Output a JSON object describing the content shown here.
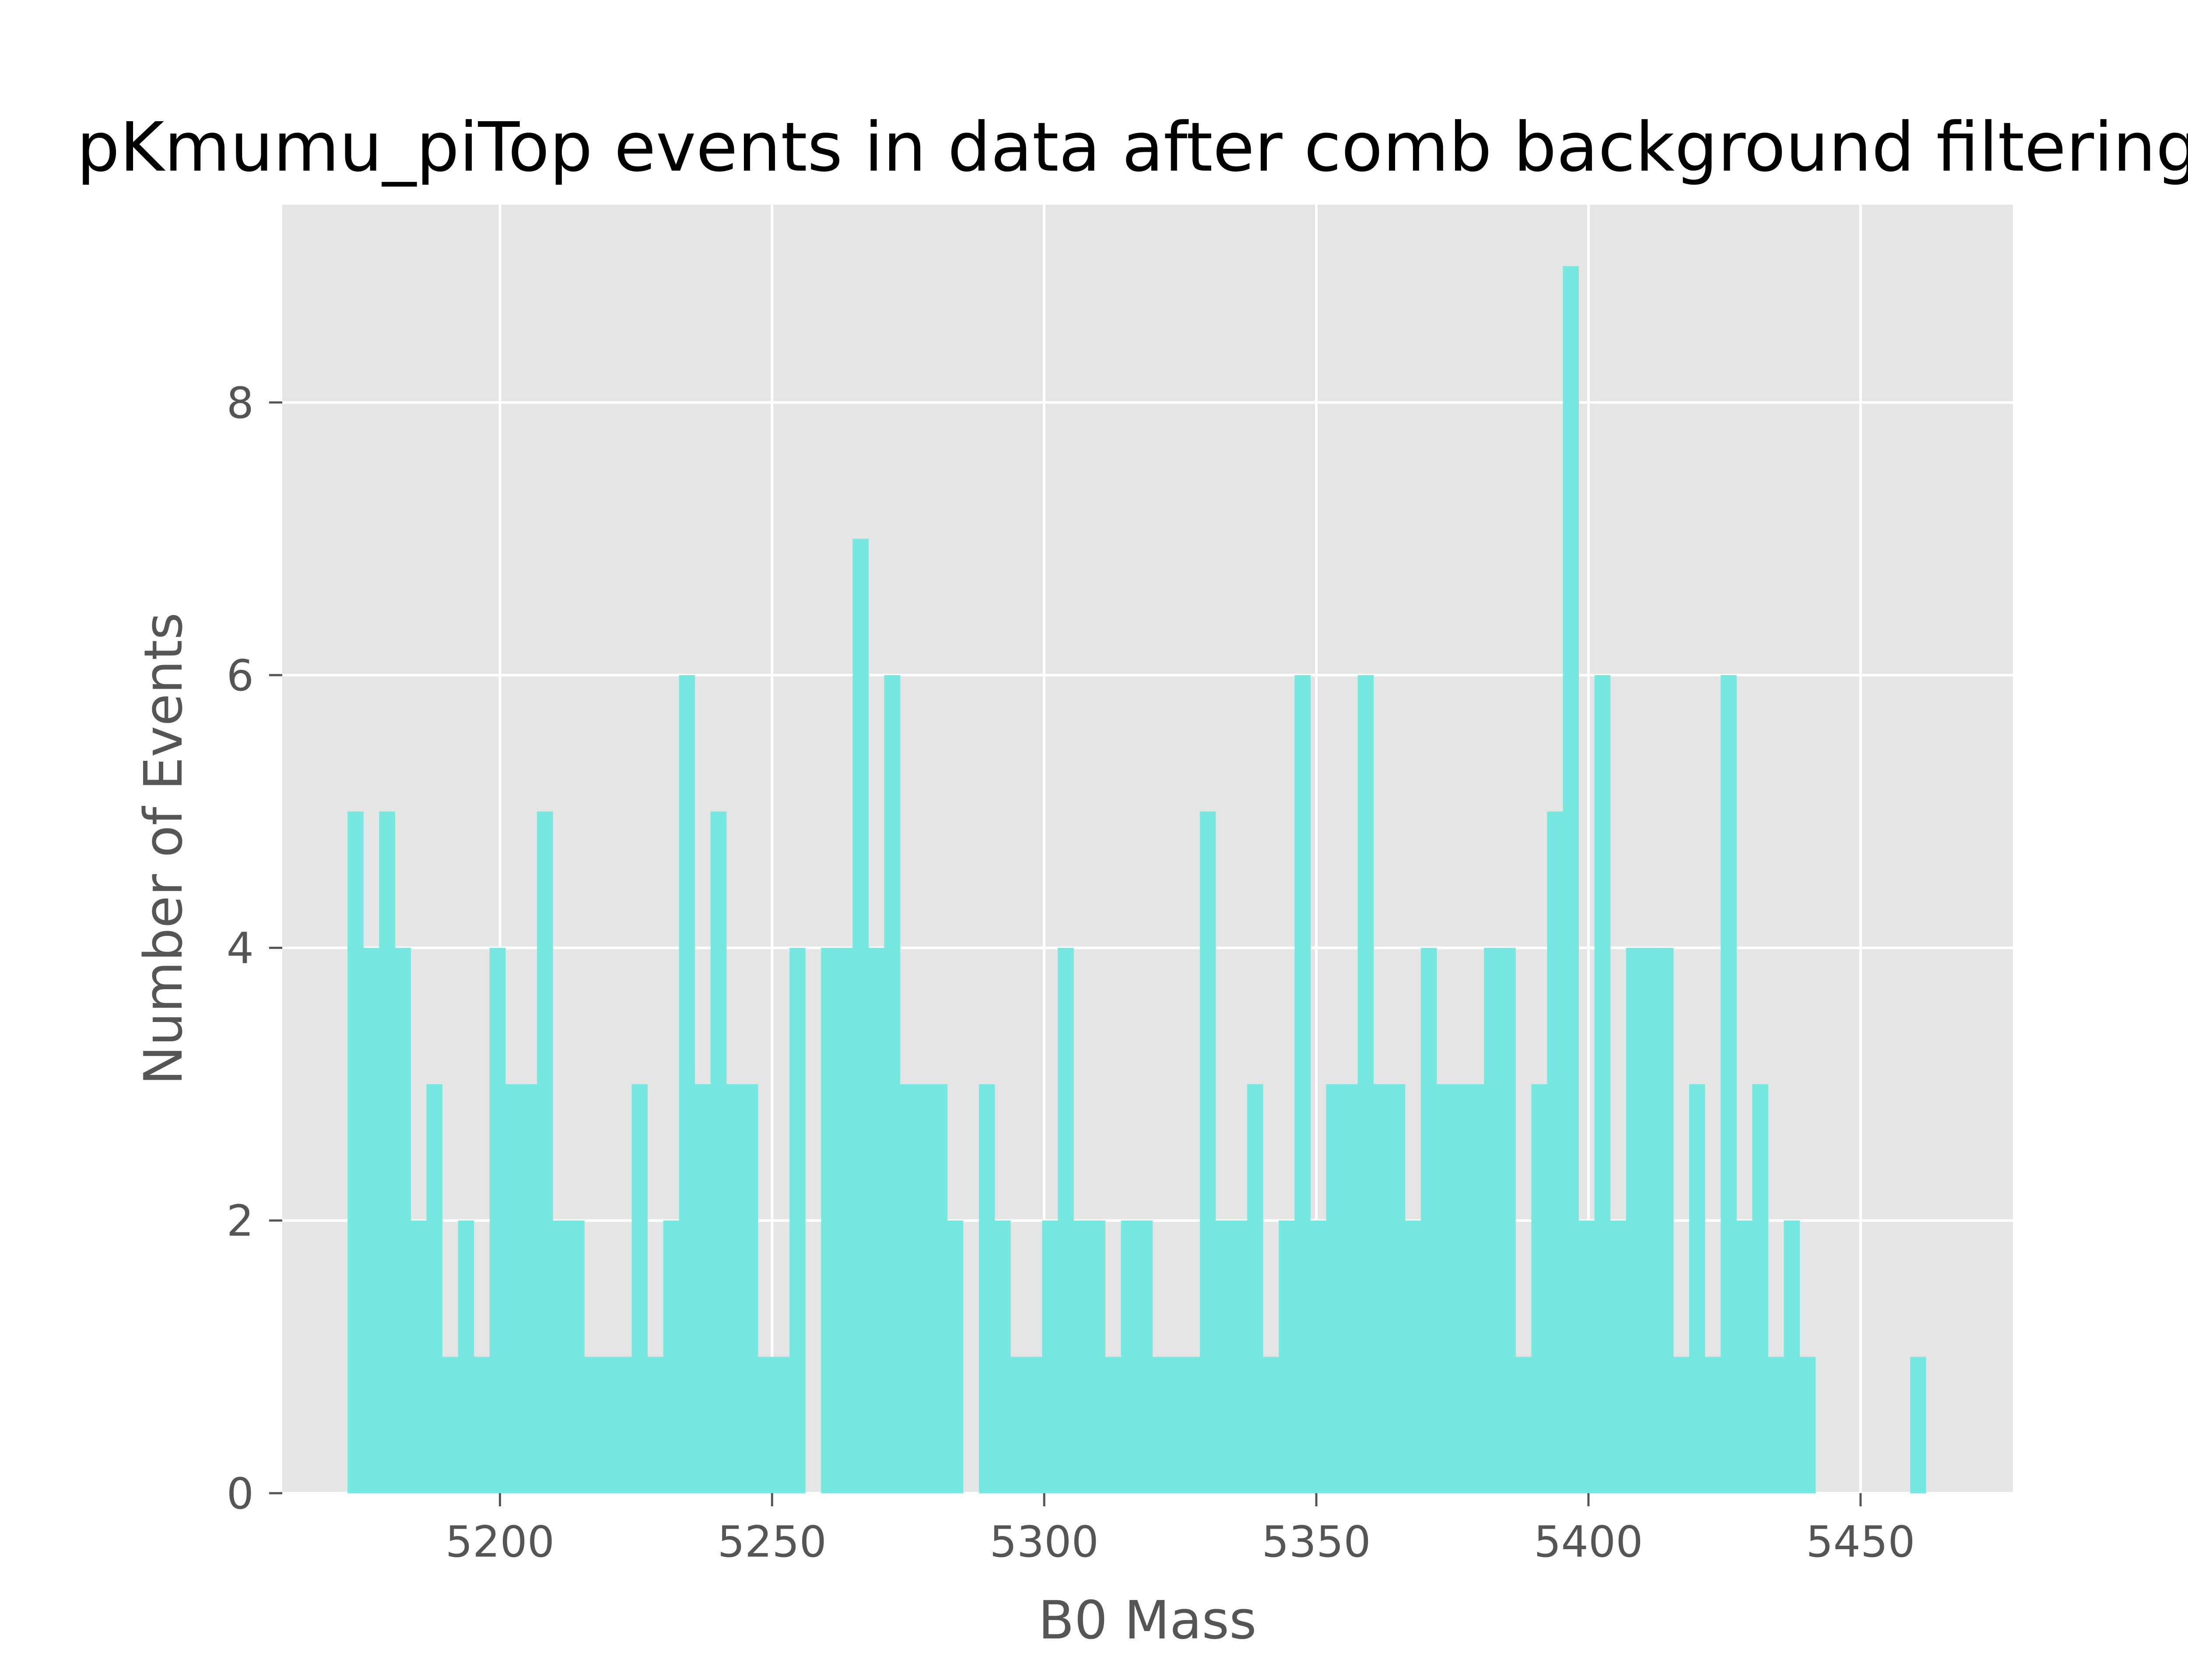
{
  "chart_data": {
    "type": "bar",
    "title": "pKmumu_piTop events in data after comb background filtering",
    "xlabel": "B0 Mass",
    "ylabel": "Number of Events",
    "xlim": [
      5160,
      5478
    ],
    "ylim": [
      0,
      9.45
    ],
    "bin_width": 2.9,
    "x_ticks": [
      5200,
      5250,
      5300,
      5350,
      5400,
      5450
    ],
    "y_ticks": [
      0,
      2,
      4,
      6,
      8
    ],
    "grid": true,
    "legend": "none",
    "colors": {
      "bar": "#76E8DF",
      "plot_background": "#E5E5E5",
      "grid": "#FFFFFF",
      "text": "#555555",
      "title": "#000000"
    },
    "bins": [
      {
        "x": 5172.0,
        "y": 5
      },
      {
        "x": 5174.9,
        "y": 4
      },
      {
        "x": 5177.8,
        "y": 5
      },
      {
        "x": 5180.7,
        "y": 4
      },
      {
        "x": 5183.6,
        "y": 2
      },
      {
        "x": 5186.5,
        "y": 3
      },
      {
        "x": 5189.4,
        "y": 1
      },
      {
        "x": 5192.3,
        "y": 2
      },
      {
        "x": 5195.2,
        "y": 1
      },
      {
        "x": 5198.1,
        "y": 4
      },
      {
        "x": 5201.0,
        "y": 3
      },
      {
        "x": 5203.9,
        "y": 3
      },
      {
        "x": 5206.8,
        "y": 5
      },
      {
        "x": 5209.7,
        "y": 2
      },
      {
        "x": 5212.6,
        "y": 2
      },
      {
        "x": 5215.5,
        "y": 1
      },
      {
        "x": 5218.4,
        "y": 1
      },
      {
        "x": 5221.3,
        "y": 1
      },
      {
        "x": 5224.2,
        "y": 3
      },
      {
        "x": 5227.1,
        "y": 1
      },
      {
        "x": 5230.0,
        "y": 2
      },
      {
        "x": 5232.9,
        "y": 6
      },
      {
        "x": 5235.8,
        "y": 3
      },
      {
        "x": 5238.7,
        "y": 5
      },
      {
        "x": 5241.6,
        "y": 3
      },
      {
        "x": 5244.5,
        "y": 3
      },
      {
        "x": 5247.4,
        "y": 1
      },
      {
        "x": 5250.3,
        "y": 1
      },
      {
        "x": 5253.2,
        "y": 4
      },
      {
        "x": 5256.1,
        "y": 0
      },
      {
        "x": 5259.0,
        "y": 4
      },
      {
        "x": 5261.9,
        "y": 4
      },
      {
        "x": 5264.8,
        "y": 7
      },
      {
        "x": 5267.7,
        "y": 4
      },
      {
        "x": 5270.6,
        "y": 6
      },
      {
        "x": 5273.5,
        "y": 3
      },
      {
        "x": 5276.4,
        "y": 3
      },
      {
        "x": 5279.3,
        "y": 3
      },
      {
        "x": 5282.2,
        "y": 2
      },
      {
        "x": 5285.1,
        "y": 0
      },
      {
        "x": 5288.0,
        "y": 3
      },
      {
        "x": 5290.9,
        "y": 2
      },
      {
        "x": 5293.8,
        "y": 1
      },
      {
        "x": 5296.7,
        "y": 1
      },
      {
        "x": 5299.6,
        "y": 2
      },
      {
        "x": 5302.5,
        "y": 4
      },
      {
        "x": 5305.4,
        "y": 2
      },
      {
        "x": 5308.3,
        "y": 2
      },
      {
        "x": 5311.2,
        "y": 1
      },
      {
        "x": 5314.1,
        "y": 2
      },
      {
        "x": 5317.0,
        "y": 2
      },
      {
        "x": 5319.9,
        "y": 1
      },
      {
        "x": 5322.8,
        "y": 1
      },
      {
        "x": 5325.7,
        "y": 1
      },
      {
        "x": 5328.6,
        "y": 5
      },
      {
        "x": 5331.5,
        "y": 2
      },
      {
        "x": 5334.4,
        "y": 2
      },
      {
        "x": 5337.3,
        "y": 3
      },
      {
        "x": 5340.2,
        "y": 1
      },
      {
        "x": 5343.1,
        "y": 2
      },
      {
        "x": 5346.0,
        "y": 6
      },
      {
        "x": 5348.9,
        "y": 2
      },
      {
        "x": 5351.8,
        "y": 3
      },
      {
        "x": 5354.7,
        "y": 3
      },
      {
        "x": 5357.6,
        "y": 6
      },
      {
        "x": 5360.5,
        "y": 3
      },
      {
        "x": 5363.4,
        "y": 3
      },
      {
        "x": 5366.3,
        "y": 2
      },
      {
        "x": 5369.2,
        "y": 4
      },
      {
        "x": 5372.1,
        "y": 3
      },
      {
        "x": 5375.0,
        "y": 3
      },
      {
        "x": 5377.9,
        "y": 3
      },
      {
        "x": 5380.8,
        "y": 4
      },
      {
        "x": 5383.7,
        "y": 4
      },
      {
        "x": 5386.6,
        "y": 1
      },
      {
        "x": 5389.5,
        "y": 3
      },
      {
        "x": 5392.4,
        "y": 5
      },
      {
        "x": 5395.3,
        "y": 9
      },
      {
        "x": 5398.2,
        "y": 2
      },
      {
        "x": 5401.1,
        "y": 6
      },
      {
        "x": 5404.0,
        "y": 2
      },
      {
        "x": 5406.9,
        "y": 4
      },
      {
        "x": 5409.8,
        "y": 4
      },
      {
        "x": 5412.7,
        "y": 4
      },
      {
        "x": 5415.6,
        "y": 1
      },
      {
        "x": 5418.5,
        "y": 3
      },
      {
        "x": 5421.4,
        "y": 1
      },
      {
        "x": 5424.3,
        "y": 6
      },
      {
        "x": 5427.2,
        "y": 2
      },
      {
        "x": 5430.1,
        "y": 3
      },
      {
        "x": 5433.0,
        "y": 1
      },
      {
        "x": 5435.9,
        "y": 2
      },
      {
        "x": 5438.8,
        "y": 1
      },
      {
        "x": 5459.1,
        "y": 1
      }
    ]
  }
}
